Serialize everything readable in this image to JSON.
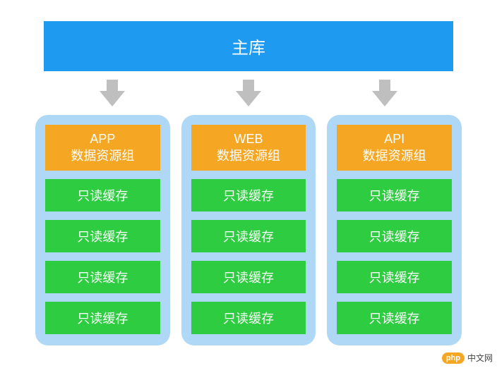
{
  "colors": {
    "main_bg": "#1e9bf0",
    "arrow": "#bfbfbf",
    "panel_bg": "#aed8f5",
    "header_bg": "#f5a623",
    "cache_bg": "#2ecc40",
    "text_white": "#ffffff"
  },
  "main": {
    "label": "主库",
    "fontsize": 24
  },
  "groups": [
    {
      "title_line1": "APP",
      "title_line2": "数据资源组",
      "caches": [
        "只读缓存",
        "只读缓存",
        "只读缓存",
        "只读缓存"
      ]
    },
    {
      "title_line1": "WEB",
      "title_line2": "数据资源组",
      "caches": [
        "只读缓存",
        "只读缓存",
        "只读缓存",
        "只读缓存"
      ]
    },
    {
      "title_line1": "API",
      "title_line2": "数据资源组",
      "caches": [
        "只读缓存",
        "只读缓存",
        "只读缓存",
        "只读缓存"
      ]
    }
  ],
  "watermark": {
    "badge": "php",
    "text": "中文网"
  }
}
